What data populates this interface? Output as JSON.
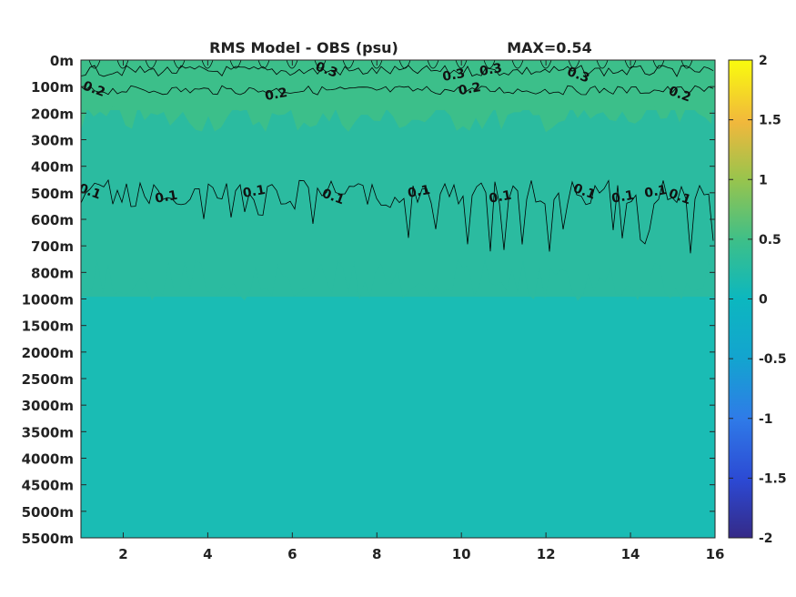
{
  "chart_data": {
    "type": "heatmap",
    "title": "RMS Model - OBS (psu)",
    "max_label": "MAX=0.54",
    "x_ticks": [
      2,
      4,
      6,
      8,
      10,
      12,
      14,
      16
    ],
    "xlim": [
      1,
      16
    ],
    "y_tick_labels": [
      "0m",
      "100m",
      "200m",
      "300m",
      "400m",
      "500m",
      "600m",
      "700m",
      "800m",
      "1000m",
      "1500m",
      "2000m",
      "2500m",
      "3000m",
      "3500m",
      "4000m",
      "4500m",
      "5000m",
      "5500m"
    ],
    "colorbar": {
      "range": [
        -2,
        2
      ],
      "tick_labels": [
        "2",
        "1.5",
        "1",
        "0.5",
        "0",
        "-0.5",
        "-1",
        "-1.5",
        "-2"
      ],
      "colormap": "parula"
    },
    "contours": [
      {
        "level": "0.3",
        "depth_band": "0m-100m",
        "labels_at_x": [
          6.8,
          9.8,
          10.7,
          12.8
        ]
      },
      {
        "level": "0.2",
        "depth_band": "100m-200m",
        "labels_at_x": [
          1.3,
          5.6,
          10.2,
          15.2
        ]
      },
      {
        "level": "0.1",
        "depth_band": "400m-700m",
        "labels_at_x": [
          1.2,
          3.0,
          5.1,
          7.0,
          9.0,
          10.9,
          12.9,
          13.8,
          14.6,
          15.2
        ]
      }
    ],
    "colors": {
      "surface_layer": "#3cbf8a",
      "upper_layer": "#2bbba0",
      "deep_layer": "#1abcb4",
      "contour_line": "#000000"
    },
    "grid": false
  }
}
